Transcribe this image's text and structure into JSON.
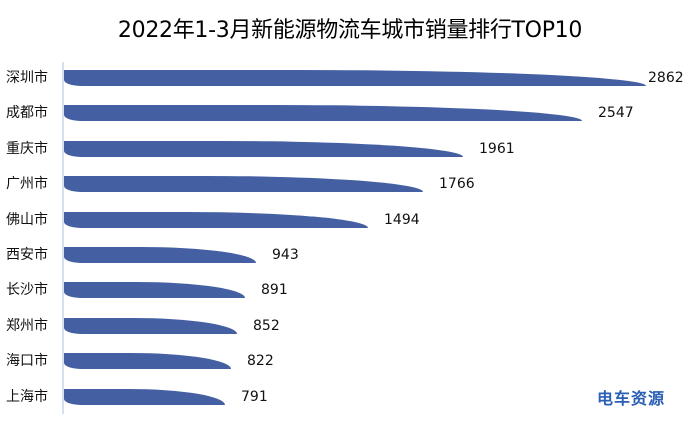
{
  "title": "2022年1-3月新能源物流车城市销量排行TOP10",
  "watermark": {
    "text": "电车资源",
    "colors": {
      "primary": "#2a5fb5",
      "accent": "#3aa63d"
    }
  },
  "colors": {
    "bar": "#4460a3",
    "axis": "#d6e0f0"
  },
  "chart_data": {
    "type": "bar",
    "orientation": "horizontal",
    "title": "2022年1-3月新能源物流车城市销量排行TOP10",
    "xlabel": "",
    "ylabel": "",
    "categories": [
      "深圳市",
      "成都市",
      "重庆市",
      "广州市",
      "佛山市",
      "西安市",
      "长沙市",
      "郑州市",
      "海口市",
      "上海市"
    ],
    "values": [
      2862,
      2547,
      1961,
      1766,
      1494,
      943,
      891,
      852,
      822,
      791
    ],
    "data_labels": true,
    "grid": false,
    "legend": null,
    "xlim": [
      0,
      2862
    ]
  },
  "rows": [
    {
      "label": "深圳市",
      "value": "2862"
    },
    {
      "label": "成都市",
      "value": "2547"
    },
    {
      "label": "重庆市",
      "value": "1961"
    },
    {
      "label": "广州市",
      "value": "1766"
    },
    {
      "label": "佛山市",
      "value": "1494"
    },
    {
      "label": "西安市",
      "value": "943"
    },
    {
      "label": "长沙市",
      "value": "891"
    },
    {
      "label": "郑州市",
      "value": "852"
    },
    {
      "label": "海口市",
      "value": "822"
    },
    {
      "label": "上海市",
      "value": "791"
    }
  ]
}
